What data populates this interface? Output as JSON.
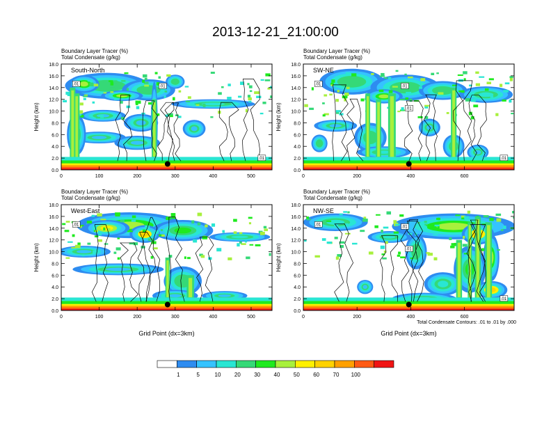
{
  "figure": {
    "title": "2013-12-21_21:00:00",
    "contour_note": "Total Condensate Contours: .01 to .01 by .000"
  },
  "colorbar": {
    "labels": [
      "1",
      "5",
      "10",
      "20",
      "30",
      "40",
      "50",
      "60",
      "70",
      "100"
    ],
    "colors": [
      "#ffffff",
      "#2e8cf0",
      "#35c3ff",
      "#29e6d3",
      "#35d977",
      "#1fea1f",
      "#a8f03c",
      "#fff000",
      "#ffd200",
      "#ffa000",
      "#ff5a14",
      "#f01414"
    ]
  },
  "chart_data": [
    {
      "type": "heatmap",
      "panel_label": "South-North",
      "subtitle_line1": "Boundary Layer Tracer   (%)",
      "subtitle_line2": "Total Condensate   (g/kg)",
      "ylabel": "Height (km)",
      "xlabel": "",
      "xlim": [
        0,
        555
      ],
      "ylim": [
        0,
        18
      ],
      "xticks": [
        "0",
        "100",
        "200",
        "300",
        "400",
        "500"
      ],
      "xtick_values": [
        0,
        100,
        200,
        300,
        400,
        500
      ],
      "yticks": [
        "0.0",
        "2.0",
        "4.0",
        "6.0",
        "8.0",
        "10.0",
        "12.0",
        "14.0",
        "16.0",
        "18.0"
      ],
      "contour_labels": [
        ".01",
        ".01",
        ".01"
      ],
      "marker_x": 280,
      "marker_y": 1.0
    },
    {
      "type": "heatmap",
      "panel_label": "SW-NE",
      "subtitle_line1": "Boundary Layer Tracer   (%)",
      "subtitle_line2": "Total Condensate   (g/kg)",
      "ylabel": "Height (km)",
      "xlabel": "",
      "xlim": [
        0,
        785
      ],
      "ylim": [
        0,
        18
      ],
      "xticks": [
        "0",
        "200",
        "400",
        "600"
      ],
      "xtick_values": [
        0,
        200,
        400,
        600
      ],
      "yticks": [
        "0.0",
        "2.0",
        "4.0",
        "6.0",
        "8.0",
        "10.0",
        "12.0",
        "14.0",
        "16.0",
        "18.0"
      ],
      "contour_labels": [
        ".01",
        ".01",
        ".01",
        ".01"
      ],
      "marker_x": 393,
      "marker_y": 1.0
    },
    {
      "type": "heatmap",
      "panel_label": "West-East",
      "subtitle_line1": "Boundary Layer Tracer   (%)",
      "subtitle_line2": "Total Condensate   (g/kg)",
      "ylabel": "Height (km)",
      "xlabel": "Grid Point (dx=3km)",
      "xlim": [
        0,
        555
      ],
      "ylim": [
        0,
        18
      ],
      "xticks": [
        "0",
        "100",
        "200",
        "300",
        "400",
        "500"
      ],
      "xtick_values": [
        0,
        100,
        200,
        300,
        400,
        500
      ],
      "yticks": [
        "0.0",
        "2.0",
        "4.0",
        "6.0",
        "8.0",
        "10.0",
        "12.0",
        "14.0",
        "16.0",
        "18.0"
      ],
      "contour_labels": [
        ".01"
      ],
      "marker_x": 280,
      "marker_y": 1.0
    },
    {
      "type": "heatmap",
      "panel_label": "NW-SE",
      "subtitle_line1": "Boundary Layer Tracer   (%)",
      "subtitle_line2": "Total Condensate   (g/kg)",
      "ylabel": "Height (km)",
      "xlabel": "Grid Point (dx=3km)",
      "xlim": [
        0,
        785
      ],
      "ylim": [
        0,
        18
      ],
      "xticks": [
        "0",
        "200",
        "400",
        "600"
      ],
      "xtick_values": [
        0,
        200,
        400,
        600
      ],
      "yticks": [
        "0.0",
        "2.0",
        "4.0",
        "6.0",
        "8.0",
        "10.0",
        "12.0",
        "14.0",
        "16.0",
        "18.0"
      ],
      "contour_labels": [
        ".01",
        ".01",
        ".01",
        ".01"
      ],
      "marker_x": 393,
      "marker_y": 1.0
    }
  ]
}
